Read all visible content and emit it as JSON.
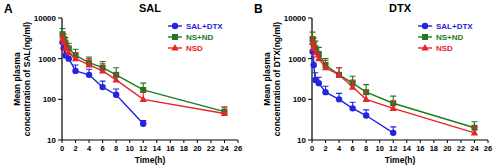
{
  "chart_data": [
    {
      "type": "line",
      "title": "SAL",
      "annotations": [
        "A"
      ],
      "x_label": "Time(h)",
      "y_label": "Mean plasma concentration of SAL(ng/ml)",
      "x": [
        0.083,
        0.25,
        0.5,
        1,
        2,
        4,
        6,
        8,
        12,
        24
      ],
      "xlim": [
        0,
        26
      ],
      "xticks": [
        0,
        2,
        4,
        6,
        8,
        10,
        12,
        14,
        16,
        18,
        20,
        22,
        24,
        26
      ],
      "ylim": [
        10,
        10000
      ],
      "yticks": [
        10,
        100,
        1000,
        10000
      ],
      "log": "y",
      "legend": "top-right",
      "series": [
        {
          "name": "SAL+DTX",
          "color": "#2323e0",
          "marker": "circle",
          "values": [
            2500,
            1800,
            1200,
            1000,
            500,
            400,
            200,
            130,
            25,
            null
          ],
          "errors": [
            700,
            500,
            400,
            300,
            200,
            150,
            80,
            50,
            5,
            null
          ]
        },
        {
          "name": "NS+ND",
          "color": "#1e7a1e",
          "marker": "square",
          "values": [
            4000,
            3000,
            2500,
            1800,
            1200,
            800,
            600,
            400,
            170,
            50
          ],
          "errors": [
            1500,
            1000,
            800,
            600,
            500,
            300,
            250,
            200,
            80,
            15
          ]
        },
        {
          "name": "NSD",
          "color": "#e8232a",
          "marker": "triangle",
          "values": [
            3000,
            2500,
            1800,
            1400,
            1000,
            700,
            500,
            300,
            100,
            45
          ],
          "errors": [
            1200,
            1000,
            700,
            500,
            400,
            300,
            250,
            150,
            50,
            20
          ]
        }
      ]
    },
    {
      "type": "line",
      "title": "DTX",
      "annotations": [
        "B"
      ],
      "x_label": "Time(h)",
      "y_label": "Mean plasma concentration of DTX(ng/ml)",
      "x": [
        0.083,
        0.25,
        0.5,
        1,
        2,
        4,
        6,
        8,
        12,
        24
      ],
      "xlim": [
        0,
        26
      ],
      "xticks": [
        0,
        2,
        4,
        6,
        8,
        10,
        12,
        14,
        16,
        18,
        20,
        22,
        24,
        26
      ],
      "ylim": [
        10,
        10000
      ],
      "yticks": [
        10,
        100,
        1000,
        10000
      ],
      "log": "y",
      "legend": "top-right",
      "series": [
        {
          "name": "SAL+DTX",
          "color": "#2323e0",
          "marker": "circle",
          "values": [
            1500,
            700,
            300,
            250,
            150,
            100,
            60,
            40,
            15,
            null
          ],
          "errors": [
            800,
            400,
            150,
            100,
            60,
            40,
            25,
            15,
            6,
            null
          ]
        },
        {
          "name": "NS+ND",
          "color": "#1e7a1e",
          "marker": "square",
          "values": [
            3000,
            2200,
            1800,
            1300,
            700,
            400,
            250,
            150,
            80,
            20
          ],
          "errors": [
            1500,
            1000,
            900,
            600,
            300,
            200,
            120,
            80,
            40,
            8
          ]
        },
        {
          "name": "NSD",
          "color": "#e8232a",
          "marker": "triangle",
          "values": [
            2500,
            1800,
            1400,
            1000,
            600,
            400,
            200,
            100,
            60,
            15
          ],
          "errors": [
            1000,
            800,
            600,
            400,
            300,
            200,
            100,
            60,
            30,
            6
          ]
        }
      ]
    }
  ]
}
